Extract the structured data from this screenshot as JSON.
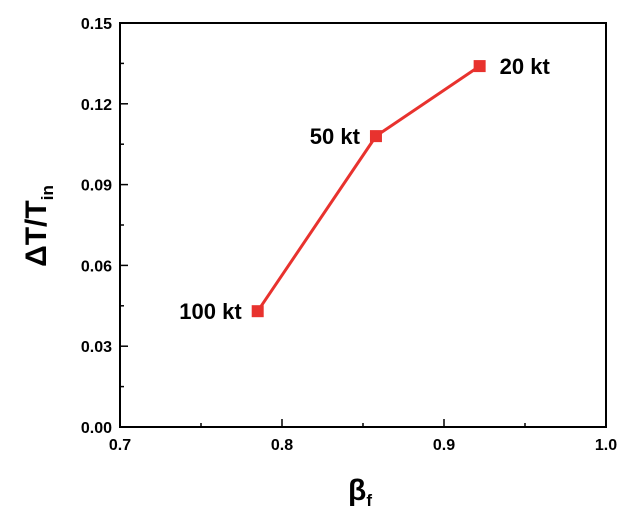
{
  "chart_data": {
    "type": "line",
    "title": "",
    "xlabel": {
      "main": "β",
      "sub": "f"
    },
    "ylabel": {
      "main": "ΔT/T",
      "sub": "in"
    },
    "xlim": [
      0.7,
      1.0
    ],
    "ylim": [
      0.0,
      0.15
    ],
    "x_ticks": [
      "0.7",
      "0.8",
      "0.9",
      "1.0"
    ],
    "y_ticks": [
      "0.00",
      "0.03",
      "0.06",
      "0.09",
      "0.12",
      "0.15"
    ],
    "grid": false,
    "series": [
      {
        "marker": "square",
        "color": "#e8322e",
        "points": [
          {
            "x": 0.785,
            "y": 0.043,
            "label": "100 kt"
          },
          {
            "x": 0.858,
            "y": 0.108,
            "label": "50 kt"
          },
          {
            "x": 0.922,
            "y": 0.134,
            "label": "20 kt"
          }
        ]
      }
    ]
  }
}
